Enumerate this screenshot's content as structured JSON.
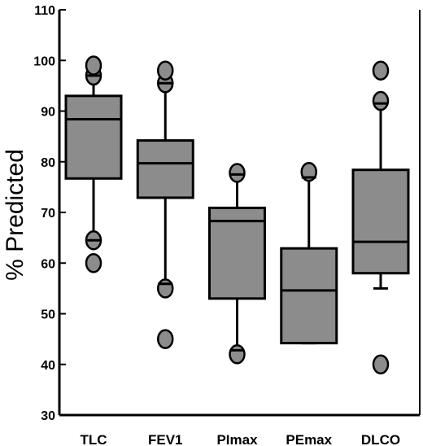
{
  "chart_data": {
    "type": "box",
    "title": "",
    "xlabel": "",
    "ylabel": "% Predicted",
    "ylim": [
      30,
      110
    ],
    "yticks": [
      30,
      40,
      50,
      60,
      70,
      80,
      90,
      100,
      110
    ],
    "grid": false,
    "legend": "none",
    "colors": {
      "box_fill": "#8c8c8c",
      "stroke": "#000000",
      "outlier_fill": "#8c8c8c"
    },
    "categories": [
      "TLC",
      "FEV1",
      "PImax",
      "PEmax",
      "DLCO"
    ],
    "boxes": [
      {
        "name": "TLC",
        "whisker_low": 64.5,
        "q1": 76.7,
        "median": 88.4,
        "q3": 93.0,
        "whisker_high": 97.0,
        "outliers": [
          60.0,
          64.5,
          97.0,
          99.0
        ]
      },
      {
        "name": "FEV1",
        "whisker_low": 55.9,
        "q1": 72.9,
        "median": 79.7,
        "q3": 84.2,
        "whisker_high": 95.5,
        "outliers": [
          45.0,
          55.0,
          95.5,
          98.0
        ]
      },
      {
        "name": "PImax",
        "whisker_low": 42.8,
        "q1": 53.0,
        "median": 68.3,
        "q3": 70.9,
        "whisker_high": 77.5,
        "outliers": [
          42.0,
          77.8
        ]
      },
      {
        "name": "PEmax",
        "whisker_low": 44.2,
        "q1": 44.2,
        "median": 54.6,
        "q3": 62.9,
        "whisker_high": 76.9,
        "outliers": [
          78.0
        ]
      },
      {
        "name": "DLCO",
        "whisker_low": 55.0,
        "q1": 58.0,
        "median": 64.2,
        "q3": 78.4,
        "whisker_high": 91.5,
        "outliers": [
          40.0,
          92.0,
          98.0
        ]
      }
    ]
  }
}
